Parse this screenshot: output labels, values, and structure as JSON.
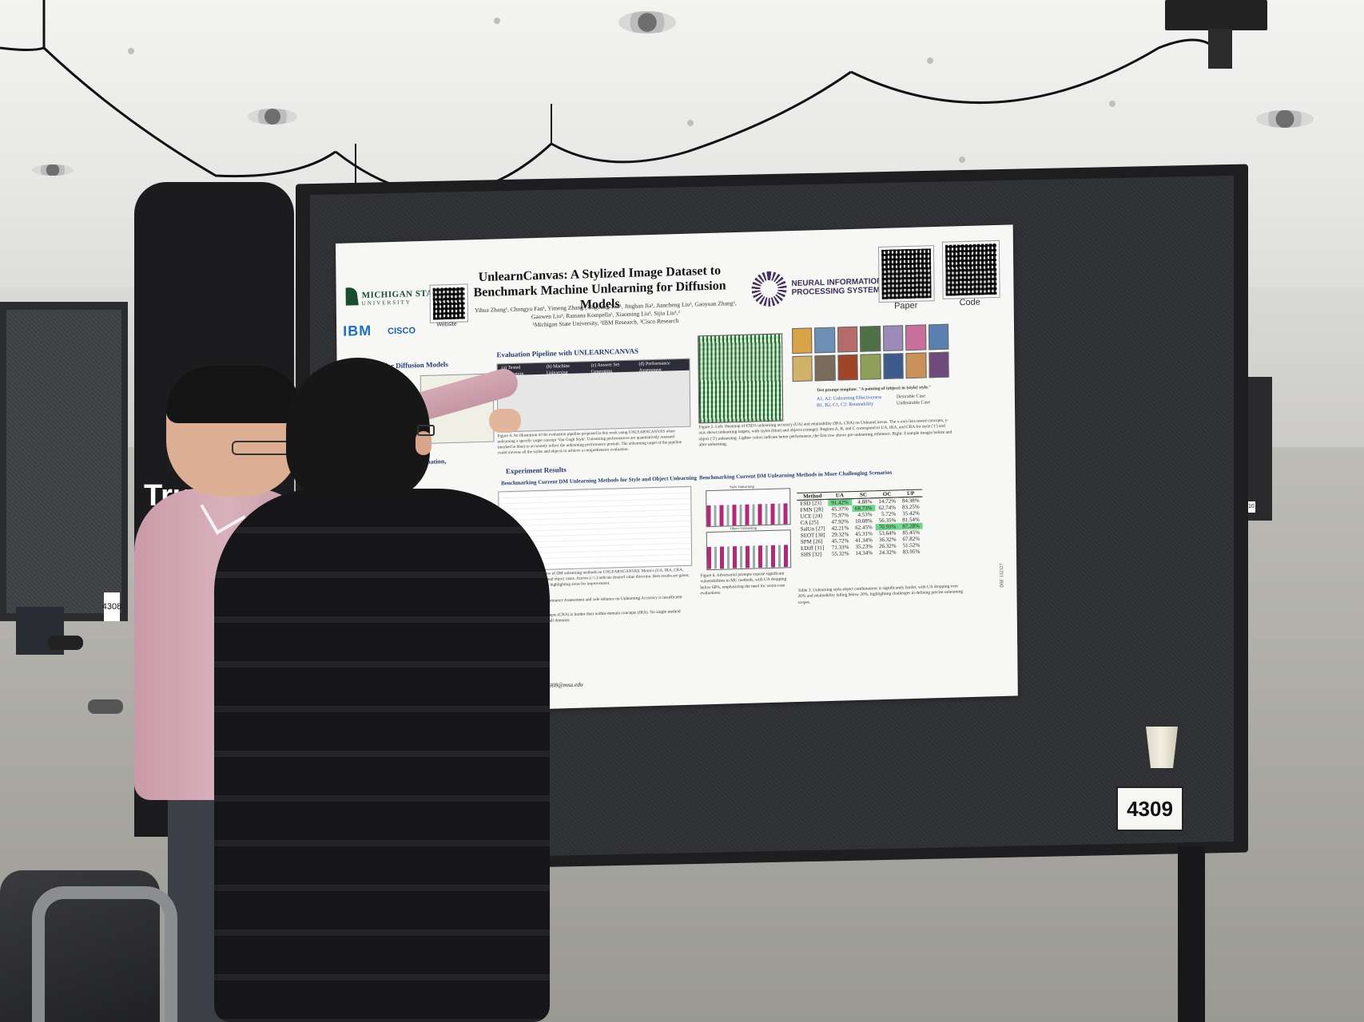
{
  "scene": {
    "board_number": "4309",
    "left_board_number": "4308",
    "pillar_text": "Tru",
    "right_board_number": "4310"
  },
  "poster": {
    "title": "UnlearnCanvas: A Stylized Image Dataset to Benchmark Machine Unlearning for Diffusion Models",
    "authors": "Yihua Zhang¹, Chongyu Fan¹, Yimeng Zhang¹, Yuguang Yao¹, Jinghan Jia¹, Jiancheng Liu¹, Gaoyuan Zhang², Gaowen Liu³, Ramana Kompella³, Xiaoming Liu¹, Sijia Liu¹,²",
    "affiliations": "¹Michigan State University, ²IBM Research, ³Cisco Research",
    "university_name": "MICHIGAN STATE",
    "university_sub": "UNIVERSITY",
    "ibm_logo": "IBM",
    "cisco_logo": "CISCO",
    "qr_website_label": "Website",
    "qr_paper_label": "Paper",
    "qr_code_label": "Code",
    "neurips_line1": "NEURAL INFORMATION",
    "neurips_line2": "PROCESSING SYSTEMS",
    "left_section_title": "for Diffusion Models",
    "eval_section_title": "Evaluation Pipeline with UNLEARNCANVAS",
    "pipeline_steps": [
      "(a) Tested Preparation",
      "(b) Machine Unlearning",
      "(c) Answer Set Generation",
      "(d) Performance Assessment"
    ],
    "eval_caption": "Figure 4. An illustration of the evaluation pipeline proposed in this work using UNLEARNCANVAS when unlearning a specific target concept 'Van Gogh Style'. Unlearning performances are quantitatively assessed (marked in blue) to accurately reflect the unlearning performance portrait. The unlearning target of the pipeline could traverse all the styles and objects to achieve a comprehensive evaluation.",
    "results_title": "Experiment Results",
    "bench_title": "Benchmarking Current DM Unlearning Methods for Style and Object Unlearning",
    "left_eval_title": "Evaluation,",
    "fig5_caption": "Figure 5. Left: Heatmap of ESD's unlearning accuracy (UA) and retainability (IRA, CRA) on UnlearnCanvas. The x-axis lists tested concepts, y-axis shows unlearning targets, with styles (blue) and objects (orange). Regions A, B, and C correspond to UA, IRA, and CRA for style ('1') and object ('2') unlearning. Lighter colors indicate better performance; the first row shows pre-unlearning reference. Right: Example images before and after unlearning.",
    "prompt_template": "Test prompt template: \"A painting of {object} in {style} style.\"",
    "legend_items": [
      "A1, A2: Unlearning Effectiveness",
      "B1, B2, C1, C2: Retainability",
      "Desirable Case",
      "Undesirable Case"
    ],
    "challenge_title": "Benchmarking Current DM Unlearning Methods in More Challenging Scenarios",
    "fig6_caption": "Figure 6. Adversarial prompts expose significant vulnerabilities in MU methods, with UA dropping below 60%, emphasizing the need for worst-case evaluations.",
    "bar_labels": [
      "Style Unlearning",
      "Object Unlearning"
    ],
    "table3_caption": "Table 3. Unlearning style-object combinations is significantly harder, with UA dropping over 20% and retainability falling below 20%, highlighting challenges in defining precise unlearning scopes.",
    "table3": {
      "headers": [
        "Method",
        "UA",
        "SC",
        "OC",
        "UP"
      ],
      "rows": [
        [
          "ESD [23]",
          "91.42%",
          "4.88%",
          "14.72%",
          "84.38%"
        ],
        [
          "FMN [28]",
          "45.37%",
          "68.73%",
          "62.74%",
          "83.25%"
        ],
        [
          "UCE [24]",
          "75.97%",
          "4.53%",
          "5.72%",
          "35.42%"
        ],
        [
          "CA [25]",
          "47.92%",
          "10.08%",
          "56.35%",
          "81.54%"
        ],
        [
          "SalUn [27]",
          "42.21%",
          "62.45%",
          "70.93%",
          "87.28%"
        ],
        [
          "SEOT [30]",
          "29.32%",
          "45.31%",
          "53.64%",
          "85.45%"
        ],
        [
          "SPM [26]",
          "45.72%",
          "41.34%",
          "36.32%",
          "67.82%"
        ],
        [
          "EDiff [31]",
          "71.33%",
          "35.23%",
          "26.32%",
          "51.52%"
        ],
        [
          "SHS [32]",
          "55.32%",
          "14.34%",
          "24.32%",
          "83.95%"
        ]
      ],
      "highlights": {
        "green": [
          "0-1",
          "1-2",
          "4-3",
          "4-4"
        ]
      }
    },
    "fig2_caption": "Table 2. Performance overview of DM unlearning methods on UNLEARNCANVAS. Metrics (UA, IRA, CRA, FID) are averaged over style and object cases. Arrows (↑/↓) indicate desired value direction. Best results are green; underperforming ones are red, highlighting areas for improvement.",
    "left_bullets": "Retainability Matters in Performance Assessment and sole reliance on Unlearning Accuracy is insufficient",
    "left_bullets2": "Retaining cross-domain concepts (CRA) is harder than within-domain concepts (IRA). No single method performs consistently across all domains",
    "contact": "Contact: zhan1908@msu.edu",
    "side_id": "DSF 132127"
  }
}
